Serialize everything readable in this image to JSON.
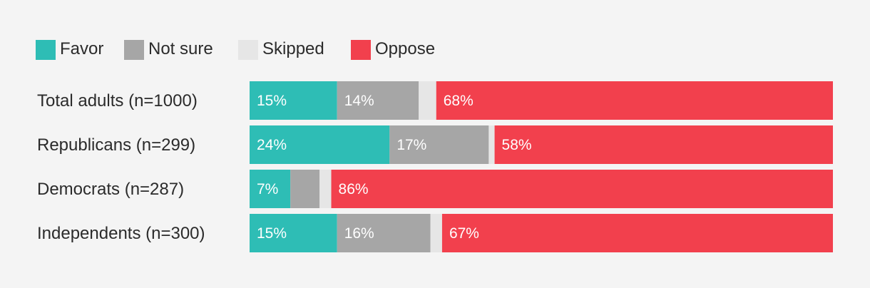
{
  "chart_data": {
    "type": "bar",
    "orientation": "horizontal",
    "stacked": true,
    "normalized": true,
    "legend_position": "top-left",
    "legend": [
      {
        "name": "Favor",
        "color": "#2ebdb5"
      },
      {
        "name": "Not sure",
        "color": "#a6a6a6"
      },
      {
        "name": "Skipped",
        "color": "#e6e6e6"
      },
      {
        "name": "Oppose",
        "color": "#f2404d"
      }
    ],
    "categories": [
      "Total adults (n=1000)",
      "Republicans (n=299)",
      "Democrats (n=287)",
      "Independents (n=300)"
    ],
    "series": [
      {
        "name": "Favor",
        "values": [
          15,
          24,
          7,
          15
        ],
        "labels": [
          "15%",
          "24%",
          "7%",
          "15%"
        ]
      },
      {
        "name": "Not sure",
        "values": [
          14,
          17,
          5,
          16
        ],
        "labels": [
          "14%",
          "17%",
          "",
          "16%"
        ]
      },
      {
        "name": "Skipped",
        "values": [
          3,
          1,
          2,
          2
        ],
        "labels": [
          "",
          "",
          "",
          ""
        ]
      },
      {
        "name": "Oppose",
        "values": [
          68,
          58,
          86,
          67
        ],
        "labels": [
          "68%",
          "58%",
          "86%",
          "67%"
        ]
      }
    ]
  }
}
